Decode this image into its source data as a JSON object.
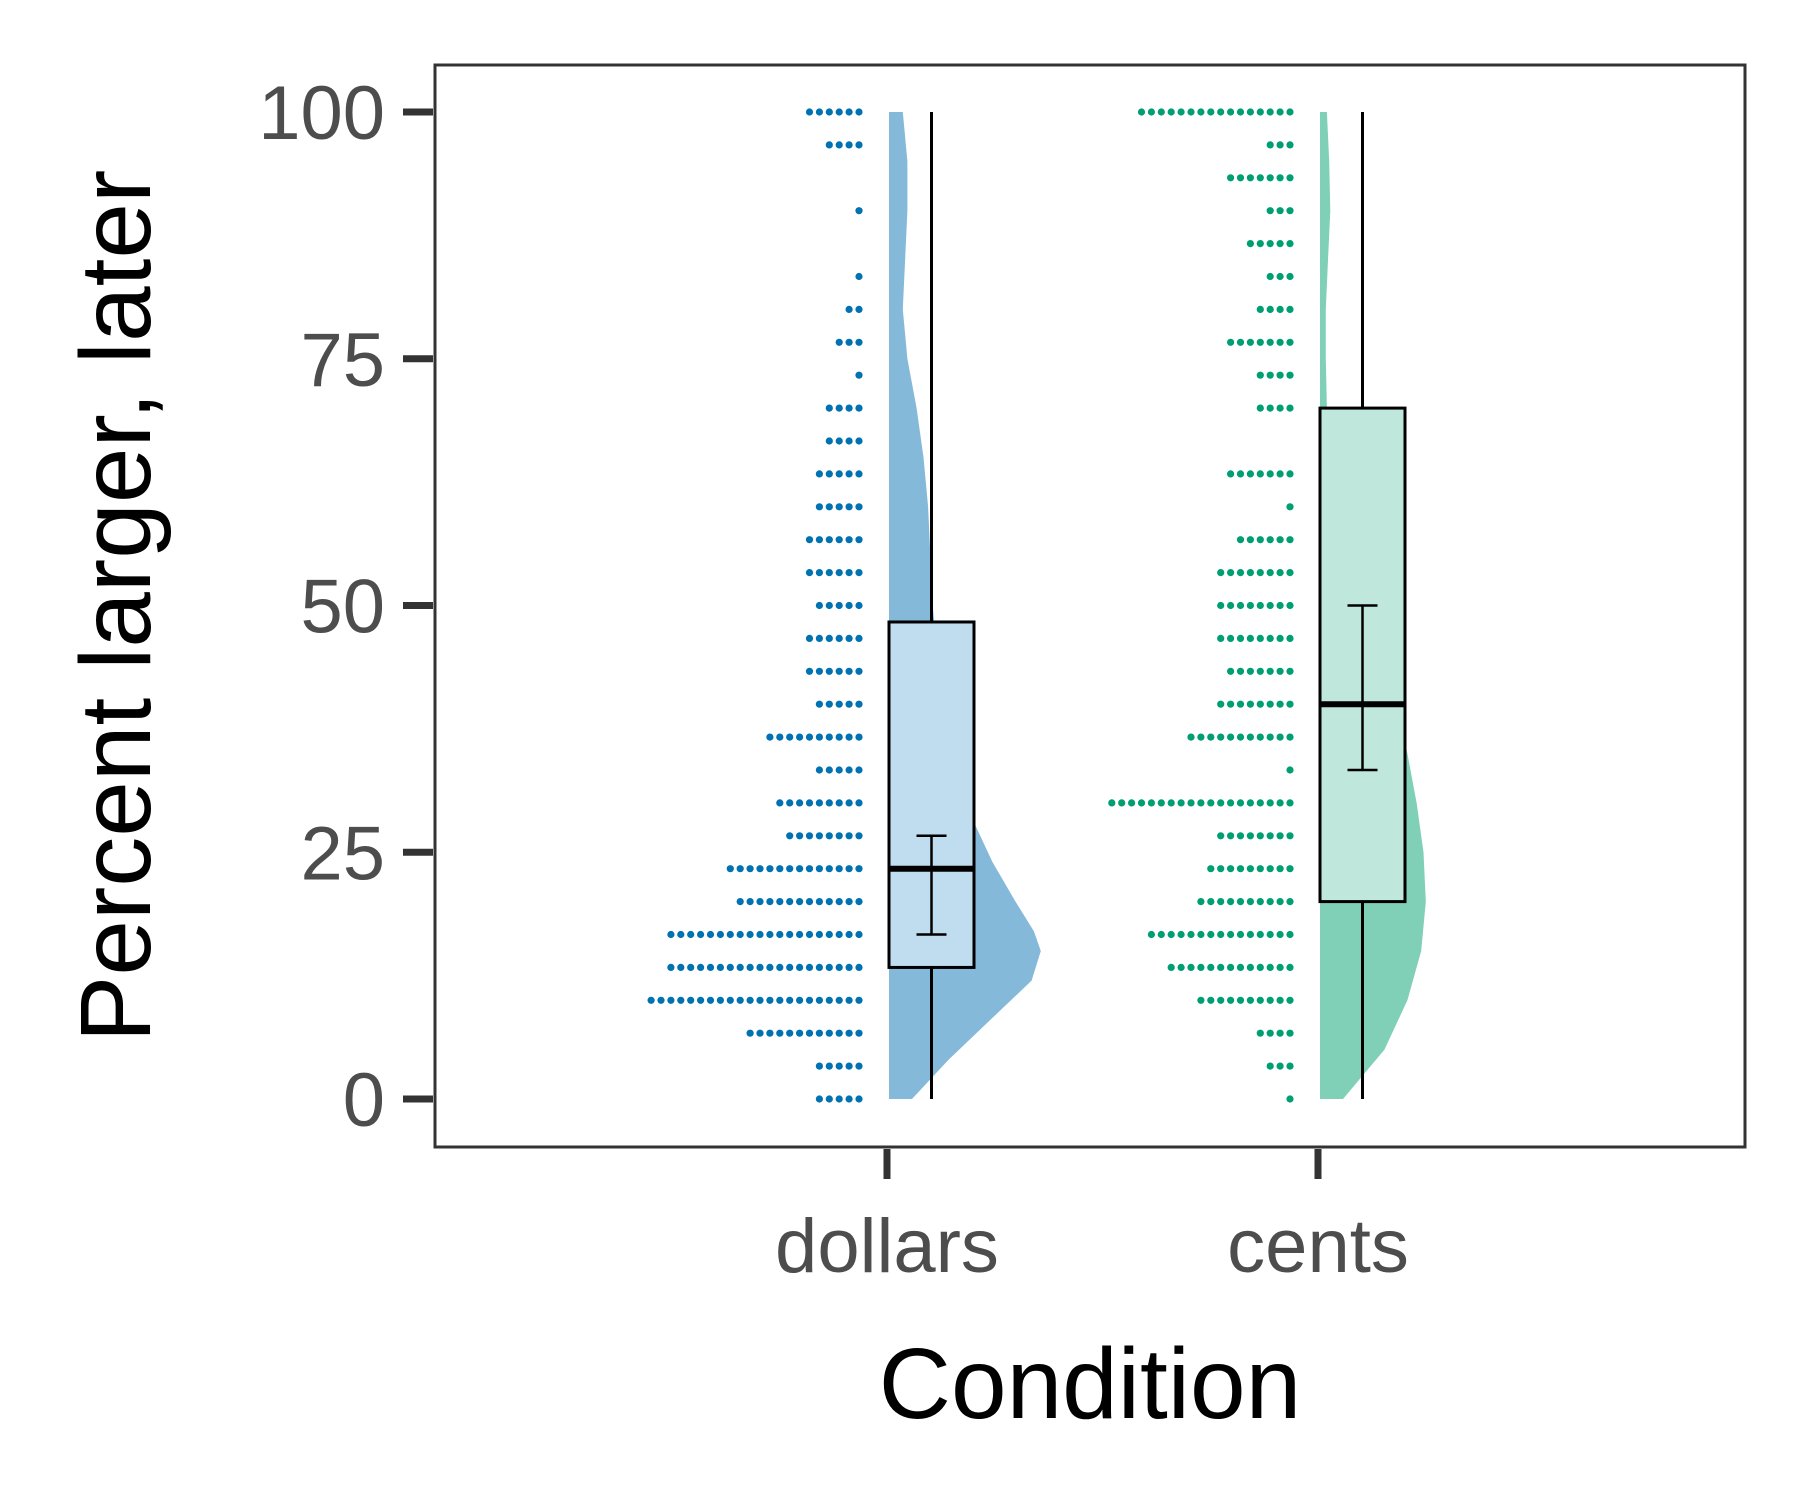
{
  "chart_data": {
    "type": "raincloud",
    "title": "",
    "xlabel": "Condition",
    "ylabel": "Percent larger, later",
    "ylim": [
      -5,
      105
    ],
    "yticks": [
      0,
      25,
      50,
      75,
      100
    ],
    "categories": [
      "dollars",
      "cents"
    ],
    "grid": false,
    "legend": "none",
    "series": [
      {
        "category": "dollars",
        "color": "#0072B2",
        "fill": "#85B9DA",
        "box_fill": "#BFDDEE",
        "box": {
          "min": 0,
          "q1": 13.33,
          "median": 23.33,
          "q3": 48.33,
          "max": 100
        },
        "mean_ci": {
          "lower": 16.67,
          "upper": 26.67
        },
        "dots": [
          [
            0,
            5
          ],
          [
            3.33,
            5
          ],
          [
            6.67,
            12
          ],
          [
            10,
            22
          ],
          [
            13.33,
            20
          ],
          [
            16.67,
            20
          ],
          [
            20,
            13
          ],
          [
            23.33,
            14
          ],
          [
            26.67,
            8
          ],
          [
            30,
            9
          ],
          [
            33.33,
            5
          ],
          [
            36.67,
            10
          ],
          [
            40,
            5
          ],
          [
            43.33,
            6
          ],
          [
            46.67,
            6
          ],
          [
            50,
            5
          ],
          [
            53.33,
            6
          ],
          [
            56.67,
            6
          ],
          [
            60,
            5
          ],
          [
            63.33,
            5
          ],
          [
            66.67,
            4
          ],
          [
            70,
            4
          ],
          [
            73.33,
            1
          ],
          [
            76.67,
            3
          ],
          [
            80,
            2
          ],
          [
            83.33,
            1
          ],
          [
            90,
            1
          ],
          [
            96.67,
            4
          ],
          [
            100,
            6
          ]
        ],
        "density": [
          [
            0,
            0.1
          ],
          [
            4,
            0.26
          ],
          [
            8,
            0.44
          ],
          [
            12,
            0.62
          ],
          [
            15,
            0.66
          ],
          [
            17,
            0.63
          ],
          [
            20,
            0.55
          ],
          [
            24,
            0.45
          ],
          [
            28,
            0.37
          ],
          [
            32,
            0.31
          ],
          [
            36,
            0.26
          ],
          [
            40,
            0.23
          ],
          [
            45,
            0.21
          ],
          [
            50,
            0.19
          ],
          [
            55,
            0.18
          ],
          [
            60,
            0.17
          ],
          [
            65,
            0.15
          ],
          [
            70,
            0.12
          ],
          [
            75,
            0.08
          ],
          [
            80,
            0.06
          ],
          [
            85,
            0.07
          ],
          [
            90,
            0.08
          ],
          [
            95,
            0.08
          ],
          [
            100,
            0.06
          ]
        ]
      },
      {
        "category": "cents",
        "color": "#009E73",
        "fill": "#80D0B8",
        "box_fill": "#BFE7DC",
        "box": {
          "min": 0,
          "q1": 20,
          "median": 40,
          "q3": 70,
          "max": 100
        },
        "mean_ci": {
          "lower": 33.33,
          "upper": 50
        },
        "dots": [
          [
            0,
            1
          ],
          [
            3.33,
            3
          ],
          [
            6.67,
            4
          ],
          [
            10,
            10
          ],
          [
            13.33,
            13
          ],
          [
            16.67,
            15
          ],
          [
            20,
            10
          ],
          [
            23.33,
            9
          ],
          [
            26.67,
            8
          ],
          [
            30,
            19
          ],
          [
            33.33,
            1
          ],
          [
            36.67,
            11
          ],
          [
            40,
            8
          ],
          [
            43.33,
            7
          ],
          [
            46.67,
            8
          ],
          [
            50,
            8
          ],
          [
            53.33,
            8
          ],
          [
            56.67,
            6
          ],
          [
            60,
            1
          ],
          [
            63.33,
            7
          ],
          [
            70,
            4
          ],
          [
            73.33,
            4
          ],
          [
            76.67,
            7
          ],
          [
            80,
            4
          ],
          [
            83.33,
            3
          ],
          [
            86.67,
            5
          ],
          [
            90,
            3
          ],
          [
            93.33,
            7
          ],
          [
            96.67,
            3
          ],
          [
            100,
            16
          ]
        ],
        "density": [
          [
            0,
            0.1
          ],
          [
            5,
            0.28
          ],
          [
            10,
            0.38
          ],
          [
            15,
            0.44
          ],
          [
            20,
            0.46
          ],
          [
            25,
            0.45
          ],
          [
            30,
            0.42
          ],
          [
            35,
            0.38
          ],
          [
            40,
            0.33
          ],
          [
            45,
            0.27
          ],
          [
            50,
            0.21
          ],
          [
            55,
            0.14
          ],
          [
            60,
            0.08
          ],
          [
            65,
            0.05
          ],
          [
            70,
            0.03
          ],
          [
            75,
            0.025
          ],
          [
            80,
            0.025
          ],
          [
            85,
            0.035
          ],
          [
            90,
            0.045
          ],
          [
            95,
            0.04
          ],
          [
            100,
            0.03
          ]
        ]
      }
    ]
  }
}
